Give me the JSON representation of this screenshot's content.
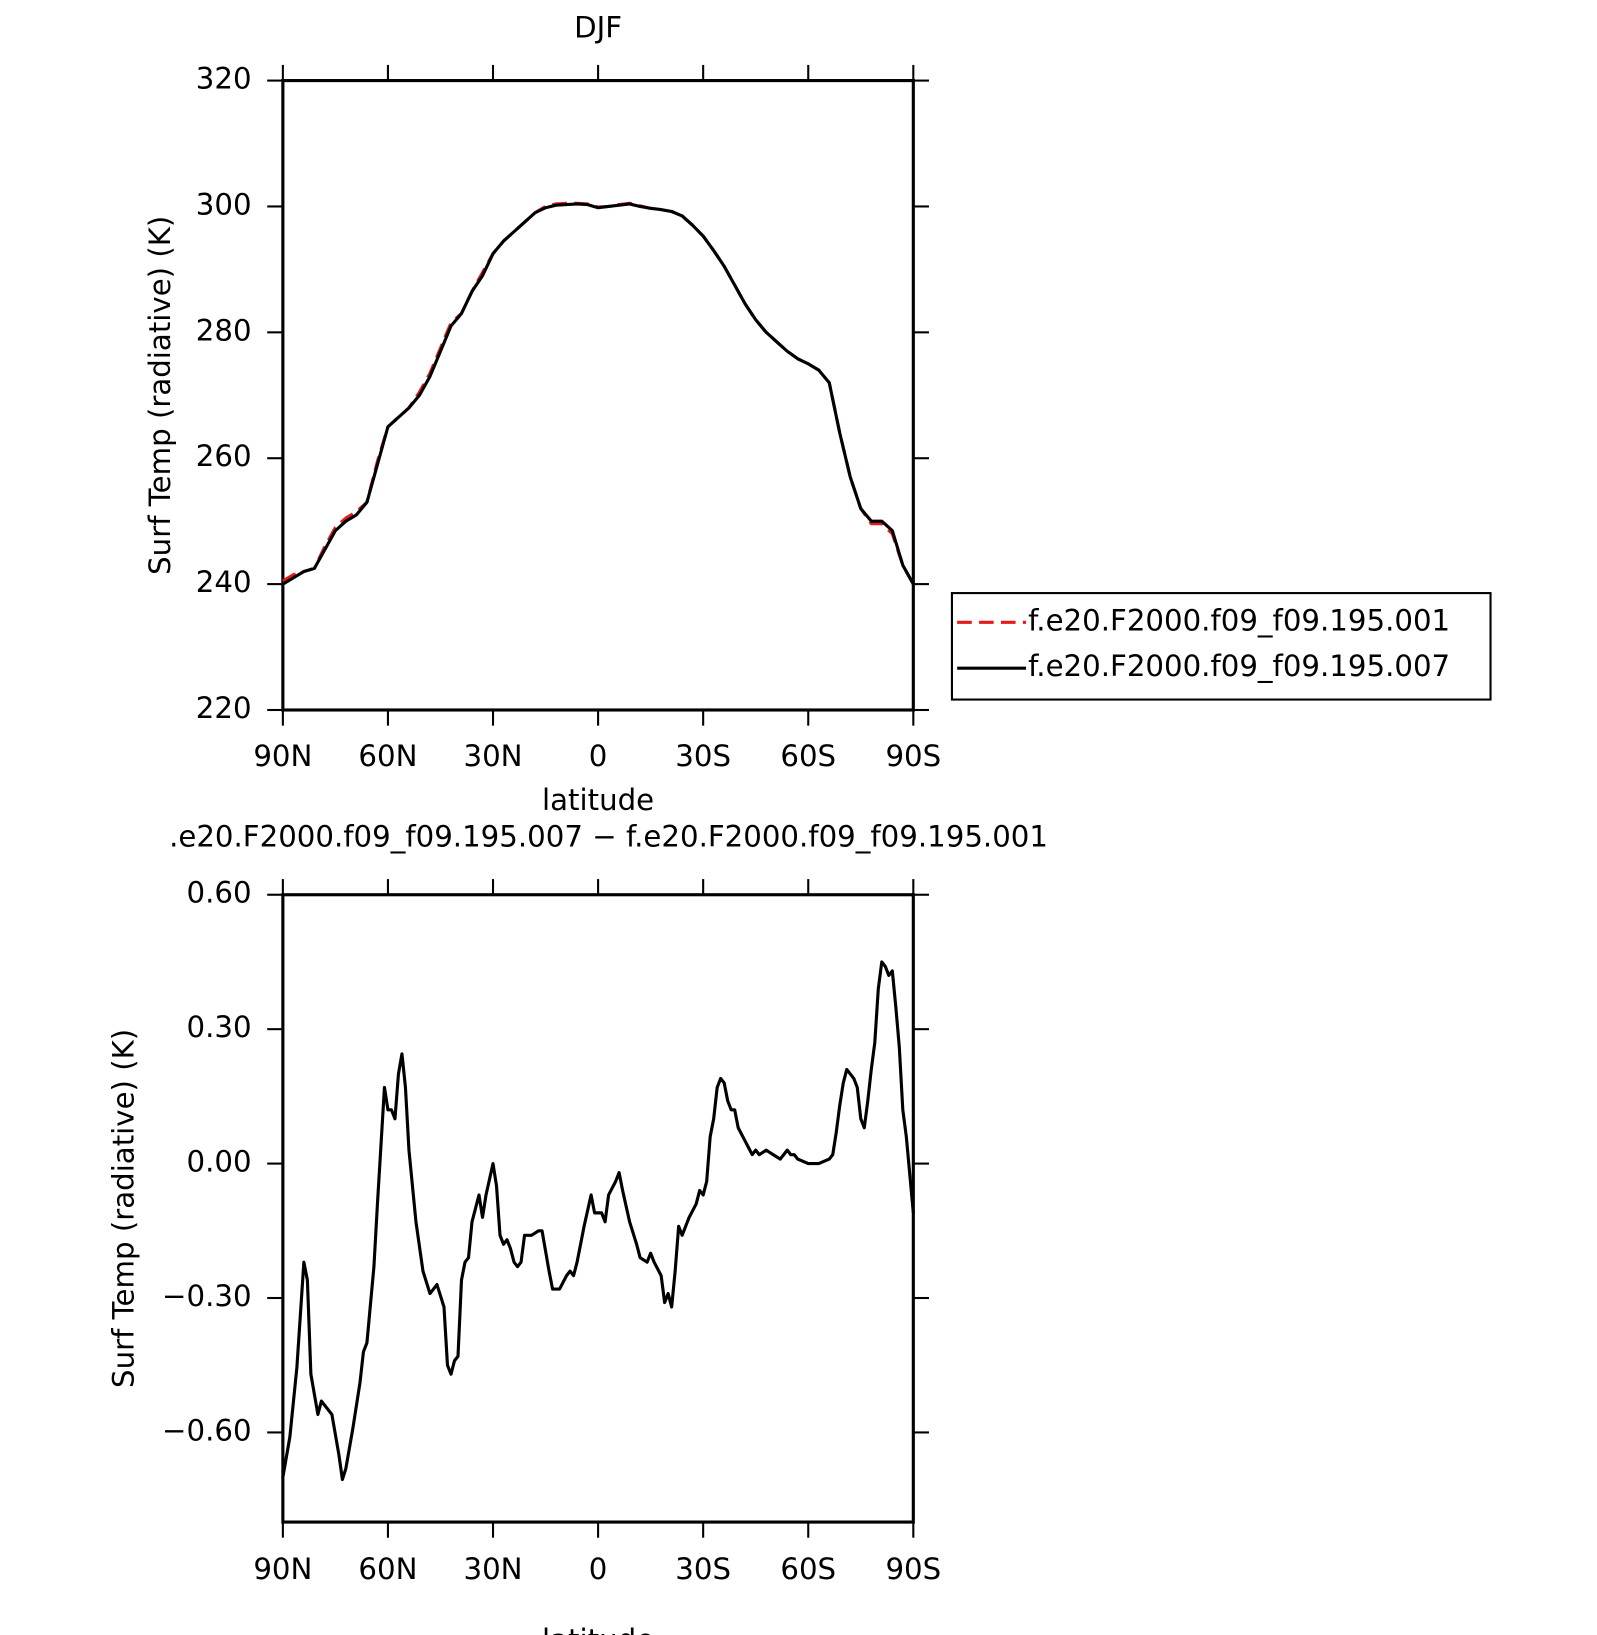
{
  "chart_data": [
    {
      "type": "line",
      "title": "DJF",
      "xlabel": "latitude",
      "ylabel": "Surf Temp (radiative) (K)",
      "x": [
        90,
        87,
        84,
        81,
        78,
        75,
        72,
        69,
        66,
        63,
        60,
        57,
        54,
        51,
        48,
        45,
        42,
        39,
        36,
        33,
        30,
        27,
        24,
        21,
        18,
        15,
        12,
        9,
        6,
        3,
        0,
        -3,
        -6,
        -9,
        -12,
        -15,
        -18,
        -21,
        -24,
        -27,
        -30,
        -33,
        -36,
        -39,
        -42,
        -45,
        -48,
        -51,
        -54,
        -57,
        -60,
        -63,
        -66,
        -69,
        -72,
        -75,
        -78,
        -81,
        -84,
        -87,
        -90
      ],
      "series": [
        {
          "name": "f.e20.F2000.f09_f09.195.001",
          "color": "#e41a1c",
          "line_style": "dashed",
          "values": [
            240.5,
            241.5,
            242,
            242.5,
            246,
            249,
            250.5,
            251.5,
            253,
            259.5,
            265,
            266.5,
            268,
            270.5,
            273.5,
            277.5,
            281.5,
            283,
            286.5,
            289.5,
            292.5,
            294.5,
            296,
            297.5,
            299,
            300,
            300.4,
            300.5,
            300.5,
            300.4,
            299.9,
            300,
            300.3,
            300.5,
            300.1,
            299.7,
            299.5,
            299.2,
            298.5,
            297,
            295.3,
            293,
            290.5,
            287.5,
            284.5,
            282,
            280,
            278.5,
            277,
            275.8,
            275,
            274,
            272,
            264,
            257,
            252,
            249.6,
            249.6,
            248,
            243,
            240
          ]
        },
        {
          "name": "f.e20.F2000.f09_f09.195.007",
          "color": "#000000",
          "line_style": "solid",
          "values": [
            240,
            241,
            242,
            242.5,
            245.5,
            248.5,
            250,
            251,
            253,
            259,
            265,
            266.5,
            268,
            270,
            273,
            277,
            281,
            283,
            286.5,
            289,
            292.5,
            294.5,
            296,
            297.5,
            299,
            299.8,
            300.2,
            300.3,
            300.4,
            300.3,
            299.8,
            300,
            300.2,
            300.4,
            300,
            299.7,
            299.5,
            299.2,
            298.5,
            297,
            295.3,
            293,
            290.5,
            287.5,
            284.5,
            282,
            280,
            278.5,
            277,
            275.8,
            275,
            274,
            272,
            264,
            257,
            252,
            250,
            250,
            248.5,
            243,
            240
          ]
        }
      ],
      "xlim": [
        90,
        -90
      ],
      "xticks": [
        {
          "value": 90,
          "label": "90N"
        },
        {
          "value": 60,
          "label": "60N"
        },
        {
          "value": 30,
          "label": "30N"
        },
        0,
        {
          "value": -30,
          "label": "30S"
        },
        {
          "value": -60,
          "label": "60S"
        },
        {
          "value": -90,
          "label": "90S"
        }
      ],
      "ylim": [
        220,
        320
      ],
      "yticks": [
        220,
        240,
        260,
        280,
        300,
        320
      ],
      "legend": "right"
    },
    {
      "type": "line",
      "title": ".e20.F2000.f09_f09.195.007 − f.e20.F2000.f09_f09.195.001",
      "xlabel": "latitude",
      "ylabel": "Surf Temp (radiative) (K)",
      "x": [
        90,
        88,
        86,
        84,
        83,
        82,
        80,
        79,
        76,
        74,
        73,
        72,
        70,
        68,
        67,
        66,
        64,
        63,
        62,
        61,
        60,
        59,
        58,
        57,
        56,
        55,
        54,
        52,
        50,
        48,
        47,
        46,
        44,
        43,
        42,
        41,
        40,
        39,
        38,
        37,
        36,
        34,
        33,
        32,
        30,
        29,
        28,
        27,
        26,
        25,
        24,
        23,
        22,
        21,
        19,
        17,
        16,
        14,
        13,
        11,
        9,
        8,
        7,
        6,
        4,
        2,
        1,
        -1,
        -2,
        -3,
        -5,
        -6,
        -7,
        -9,
        -11,
        -12,
        -14,
        -15,
        -16,
        -18,
        -19,
        -20,
        -21,
        -22,
        -23,
        -24,
        -26,
        -28,
        -29,
        -30,
        -31,
        -32,
        -33,
        -34,
        -35,
        -36,
        -37,
        -38,
        -39,
        -40,
        -42,
        -44,
        -45,
        -46,
        -48,
        -50,
        -52,
        -54,
        -55,
        -56,
        -57,
        -60,
        -63,
        -66,
        -67,
        -68,
        -69,
        -70,
        -71,
        -72,
        -73,
        -74,
        -75,
        -76,
        -77,
        -78,
        -79,
        -80,
        -81,
        -82,
        -83,
        -84,
        -85,
        -86,
        -87,
        -88,
        -90
      ],
      "values": [
        -0.7,
        -0.61,
        -0.455,
        -0.22,
        -0.26,
        -0.47,
        -0.56,
        -0.53,
        -0.56,
        -0.65,
        -0.705,
        -0.68,
        -0.59,
        -0.49,
        -0.42,
        -0.4,
        -0.23,
        -0.09,
        0.04,
        0.17,
        0.12,
        0.12,
        0.1,
        0.2,
        0.245,
        0.17,
        0.03,
        -0.13,
        -0.24,
        -0.29,
        -0.28,
        -0.27,
        -0.32,
        -0.45,
        -0.47,
        -0.44,
        -0.43,
        -0.26,
        -0.22,
        -0.21,
        -0.13,
        -0.07,
        -0.12,
        -0.07,
        0.0,
        -0.05,
        -0.16,
        -0.18,
        -0.17,
        -0.19,
        -0.22,
        -0.23,
        -0.22,
        -0.16,
        -0.16,
        -0.15,
        -0.15,
        -0.24,
        -0.28,
        -0.28,
        -0.25,
        -0.24,
        -0.25,
        -0.22,
        -0.14,
        -0.07,
        -0.11,
        -0.11,
        -0.13,
        -0.07,
        -0.04,
        -0.02,
        -0.06,
        -0.13,
        -0.18,
        -0.21,
        -0.22,
        -0.2,
        -0.22,
        -0.25,
        -0.31,
        -0.29,
        -0.32,
        -0.24,
        -0.14,
        -0.16,
        -0.12,
        -0.09,
        -0.06,
        -0.07,
        -0.04,
        0.06,
        0.1,
        0.17,
        0.19,
        0.18,
        0.14,
        0.12,
        0.12,
        0.08,
        0.05,
        0.02,
        0.03,
        0.02,
        0.03,
        0.02,
        0.01,
        0.03,
        0.02,
        0.02,
        0.01,
        0,
        0,
        0.01,
        0.02,
        0.07,
        0.13,
        0.18,
        0.21,
        0.2,
        0.19,
        0.17,
        0.1,
        0.08,
        0.14,
        0.21,
        0.27,
        0.39,
        0.45,
        0.44,
        0.42,
        0.43,
        0.35,
        0.26,
        0.12,
        0.06,
        -0.11
      ],
      "color": "#000000",
      "xlim": [
        90,
        -90
      ],
      "xticks": [
        {
          "value": 90,
          "label": "90N"
        },
        {
          "value": 60,
          "label": "60N"
        },
        {
          "value": 30,
          "label": "30N"
        },
        0,
        {
          "value": -30,
          "label": "30S"
        },
        {
          "value": -60,
          "label": "60S"
        },
        {
          "value": -90,
          "label": "90S"
        }
      ],
      "ylim": [
        -0.8,
        0.6
      ],
      "yticks": [
        {
          "value": -0.6,
          "label": "−0.60"
        },
        {
          "value": -0.3,
          "label": "−0.30"
        },
        {
          "value": 0,
          "label": "0.00"
        },
        {
          "value": 0.3,
          "label": "0.30"
        },
        {
          "value": 0.6,
          "label": "0.60"
        }
      ]
    }
  ]
}
